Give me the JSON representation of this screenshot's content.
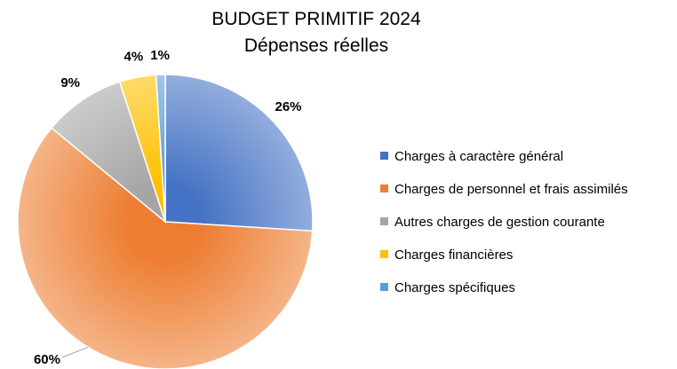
{
  "chart_data": {
    "type": "pie",
    "title": "BUDGET PRIMITIF 2024",
    "subtitle": "Dépenses réelles",
    "categories": [
      "Charges à caractère général",
      "Charges de personnel et frais assimilés",
      "Autres charges de gestion courante",
      "Charges financières",
      "Charges spécifiques"
    ],
    "values": [
      26,
      60,
      9,
      4,
      1
    ],
    "labels": [
      "26%",
      "60%",
      "9%",
      "4%",
      "1%"
    ],
    "colors": [
      "#4472C4",
      "#ED7D31",
      "#A5A5A5",
      "#FFC000",
      "#5B9BD5"
    ],
    "legend_position": "right"
  }
}
